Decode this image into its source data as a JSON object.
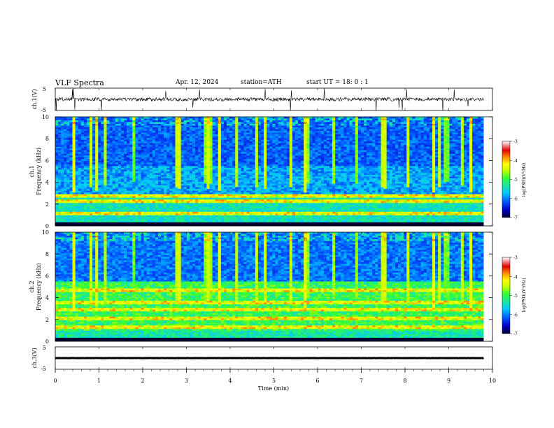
{
  "header": {
    "title": "VLF  Spectra",
    "date": "Apr. 12, 2024",
    "station": "station=ATH",
    "start": "start  UT  =   18: 0  : 1"
  },
  "panels": {
    "ch1_wave": {
      "label": "ch.1(V)",
      "ticks": [
        "5",
        "-5"
      ]
    },
    "ch1_spec": {
      "label_top": "ch.1",
      "label": "Frequency  (kHz)",
      "ticks": [
        "10",
        "8",
        "6",
        "4",
        "2",
        "0"
      ]
    },
    "ch2_spec": {
      "label_top": "ch.2",
      "label": "Frequency  (kHz)",
      "ticks": [
        "10",
        "8",
        "6",
        "4",
        "2",
        "0"
      ]
    },
    "ch3_wave": {
      "label": "ch.3(V)",
      "ticks": [
        "5",
        "-5"
      ]
    }
  },
  "colorbars": [
    {
      "label": "log(PSD)(V²/Hz)",
      "ticks": [
        "-3",
        "-4",
        "-5",
        "-6",
        "-7"
      ]
    },
    {
      "label": "log(PSD)(V²/Hz)",
      "ticks": [
        "-3",
        "-4",
        "-5",
        "-6",
        "-7"
      ]
    }
  ],
  "chart_data": {
    "type": "heatmap",
    "xlabel": "Time  (min)",
    "xlim": [
      0,
      10
    ],
    "x_ticks": [
      "0",
      "1",
      "2",
      "3",
      "4",
      "5",
      "6",
      "7",
      "8",
      "9",
      "10"
    ],
    "data_end_min": 9.8,
    "panels": [
      {
        "name": "ch.1(V)",
        "type": "line",
        "ylim": [
          -5,
          5
        ],
        "baseline": 0
      },
      {
        "name": "ch.1",
        "type": "heatmap",
        "ylabel": "Frequency  (kHz)",
        "ylim": [
          0,
          10
        ],
        "clim": [
          -7,
          -3
        ],
        "strong_bands_khz": [
          0.2,
          1.2,
          2.2,
          2.7
        ]
      },
      {
        "name": "ch.2",
        "type": "heatmap",
        "ylabel": "Frequency  (kHz)",
        "ylim": [
          0,
          10
        ],
        "clim": [
          -7,
          -3
        ],
        "strong_bands_khz": [
          0.2,
          1.3,
          2.1,
          2.9,
          3.6,
          4.6
        ]
      },
      {
        "name": "ch.3(V)",
        "type": "line",
        "ylim": [
          -5,
          5
        ],
        "baseline": 0
      }
    ],
    "colormap": [
      "#000033",
      "#0000c8",
      "#0050ff",
      "#00c8ff",
      "#19e6a0",
      "#32ff32",
      "#c8ff00",
      "#ffff00",
      "#ff8000",
      "#e60000",
      "#ffffff"
    ]
  }
}
